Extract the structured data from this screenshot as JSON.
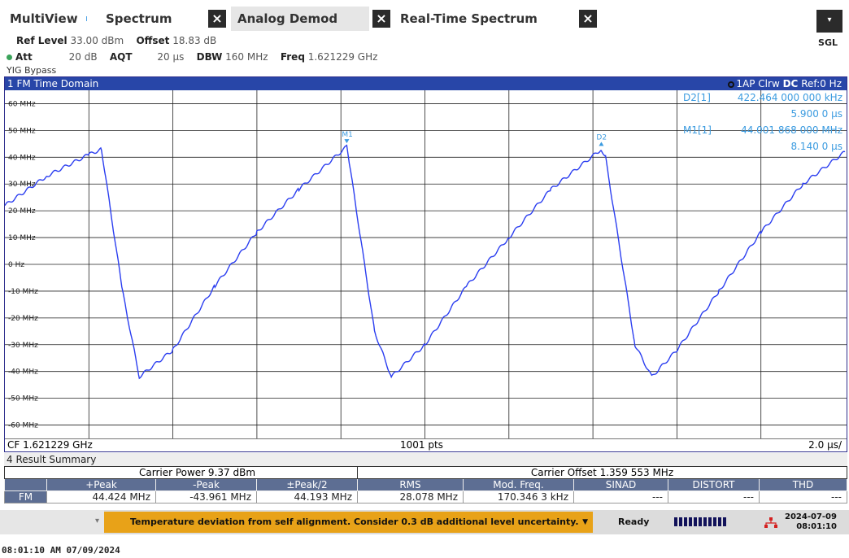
{
  "tabs": [
    {
      "label": "MultiView",
      "close": "",
      "active": false
    },
    {
      "label": "Spectrum",
      "close": "×",
      "active": false
    },
    {
      "label": "Analog Demod",
      "close": "×",
      "active": true
    },
    {
      "label": "Real-Time Spectrum",
      "close": "×",
      "active": false
    }
  ],
  "toolbar": {
    "dropdown": "▾",
    "sgl": "SGL"
  },
  "settings": {
    "ref_level_label": "Ref Level",
    "ref_level": "33.00 dBm",
    "offset_label": "Offset",
    "offset": "18.83 dB",
    "att_label": "Att",
    "att": "20 dB",
    "aqt_label": "AQT",
    "aqt": "20 µs",
    "dbw_label": "DBW",
    "dbw": "160 MHz",
    "freq_label": "Freq",
    "freq": "1.621229 GHz",
    "yig": "YIG Bypass"
  },
  "diagram": {
    "title": "1 FM Time Domain",
    "trace_info": "1AP Clrw",
    "dc": "DC",
    "ref": "Ref:0 Hz",
    "cf": "CF 1.621229 GHz",
    "pts": "1001 pts",
    "span": "2.0 µs/",
    "y_ticks": [
      "60 MHz",
      "50 MHz",
      "40 MHz",
      "30 MHz",
      "20 MHz",
      "10 MHz",
      "0 Hz",
      "-10 MHz",
      "-20 MHz",
      "-30 MHz",
      "-40 MHz",
      "-50 MHz",
      "-60 MHz"
    ],
    "markers": [
      {
        "name": "D2[1]",
        "value": "422.464 000 000 kHz",
        "time": "5.900 0 µs",
        "tag": "D2"
      },
      {
        "name": "M1[1]",
        "value": "44.001 868 000 MHz",
        "time": "8.140 0 µs",
        "tag": "M1"
      }
    ],
    "colors": {
      "trace": "#2b3ef0",
      "marker": "#3b9be0",
      "title_bg": "#2846a8"
    }
  },
  "chart_data": {
    "type": "line",
    "title": "1 FM Time Domain",
    "xlabel": "",
    "ylabel": "",
    "xlim_us": [
      0,
      20
    ],
    "ylim_mhz": [
      -65,
      65
    ],
    "grid": true,
    "series": [
      {
        "name": "",
        "x_us": [
          0,
          1.0,
          2.0,
          2.3,
          2.8,
          3.2,
          4.0,
          5.0,
          6.0,
          7.0,
          8.14,
          8.2,
          8.8,
          9.2,
          10.0,
          11.0,
          12.0,
          13.0,
          14.2,
          14.3,
          15.0,
          15.4,
          16.0,
          17.0,
          18.0,
          19.0,
          20.0
        ],
        "y_mhz": [
          22,
          33,
          41,
          43,
          -10,
          -42,
          -32,
          -8,
          12,
          28,
          44,
          38,
          -25,
          -42,
          -30,
          -8,
          10,
          28,
          43,
          40,
          -30,
          -42,
          -32,
          -10,
          12,
          30,
          42
        ]
      }
    ]
  },
  "result": {
    "title": "4 Result Summary",
    "carrier_power": "Carrier Power  9.37 dBm",
    "carrier_offset": "Carrier Offset  1.359 553 MHz",
    "headers": [
      "",
      "+Peak",
      "-Peak",
      "±Peak/2",
      "RMS",
      "Mod. Freq.",
      "SINAD",
      "DISTORT",
      "THD"
    ],
    "row": [
      "FM",
      "44.424 MHz",
      "-43.961 MHz",
      "44.193 MHz",
      "28.078 MHz",
      "170.346 3 kHz",
      "---",
      "---",
      "---"
    ]
  },
  "status": {
    "message": "Temperature deviation from self alignment. Consider 0.3 dB additional level uncertainty.",
    "ready": "Ready",
    "date": "2024-07-09",
    "time": "08:01:10"
  },
  "footer": "08:01:10 AM  07/09/2024"
}
